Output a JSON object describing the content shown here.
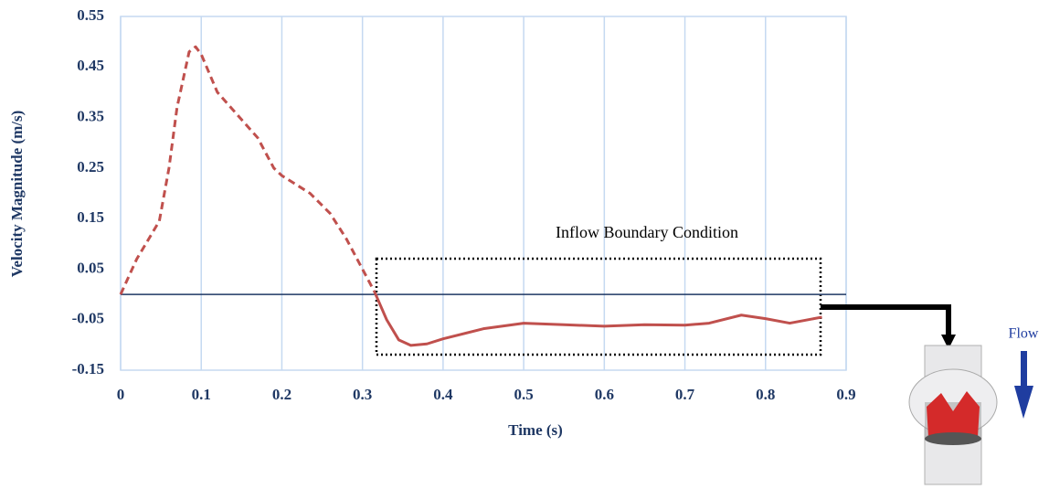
{
  "chart_data": {
    "type": "line",
    "xlabel": "Time (s)",
    "ylabel": "Velocity Magnitude (m/s)",
    "xlim": [
      0,
      0.9
    ],
    "xticks": [
      0,
      0.1,
      0.2,
      0.3,
      0.4,
      0.5,
      0.6,
      0.7,
      0.8,
      0.9
    ],
    "ylim": [
      -0.15,
      0.55
    ],
    "yticks": [
      0.55,
      0.45,
      0.35,
      0.25,
      0.15,
      0.05,
      -0.05,
      -0.15
    ],
    "grid": "x",
    "series": [
      {
        "color": "#c0504d",
        "dashed": true,
        "x": [
          0,
          0.02,
          0.035,
          0.048,
          0.06,
          0.07,
          0.085,
          0.093,
          0.1,
          0.12,
          0.145,
          0.17,
          0.19,
          0.2,
          0.235,
          0.26,
          0.28,
          0.3,
          0.315
        ],
        "values": [
          0,
          0.07,
          0.11,
          0.145,
          0.25,
          0.37,
          0.48,
          0.49,
          0.475,
          0.4,
          0.355,
          0.31,
          0.25,
          0.235,
          0.2,
          0.16,
          0.11,
          0.05,
          0.005
        ]
      },
      {
        "color": "#c0504d",
        "dashed": false,
        "x": [
          0.315,
          0.33,
          0.345,
          0.36,
          0.38,
          0.4,
          0.45,
          0.5,
          0.55,
          0.6,
          0.65,
          0.7,
          0.73,
          0.77,
          0.8,
          0.83,
          0.87
        ],
        "values": [
          0.005,
          -0.05,
          -0.09,
          -0.101,
          -0.098,
          -0.088,
          -0.068,
          -0.057,
          -0.06,
          -0.063,
          -0.06,
          -0.061,
          -0.057,
          -0.041,
          -0.048,
          -0.057,
          -0.045
        ]
      }
    ],
    "annotations": [
      "Inflow Boundary Condition",
      "Flow"
    ]
  }
}
